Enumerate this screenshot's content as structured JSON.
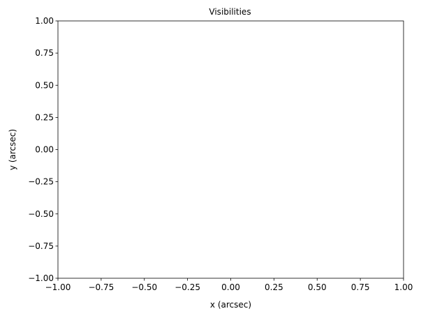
{
  "chart_data": {
    "type": "scatter",
    "title": "Visibilities",
    "xlabel": "x (arcsec)",
    "ylabel": "y (arcsec)",
    "xlim": [
      -1.0,
      1.0
    ],
    "ylim": [
      -1.0,
      1.0
    ],
    "x_ticks": [
      -1.0,
      -0.75,
      -0.5,
      -0.25,
      0.0,
      0.25,
      0.5,
      0.75,
      1.0
    ],
    "x_tick_labels": [
      "−1.00",
      "−0.75",
      "−0.50",
      "−0.25",
      "0.00",
      "0.25",
      "0.50",
      "0.75",
      "1.00"
    ],
    "y_ticks": [
      1.0,
      0.75,
      0.5,
      0.25,
      0.0,
      -0.25,
      -0.5,
      -0.75,
      -1.0
    ],
    "y_tick_labels": [
      "1.00",
      "0.75",
      "0.50",
      "0.25",
      "0.00",
      "−0.25",
      "−0.50",
      "−0.75",
      "−1.00"
    ],
    "grid": false,
    "series": []
  }
}
